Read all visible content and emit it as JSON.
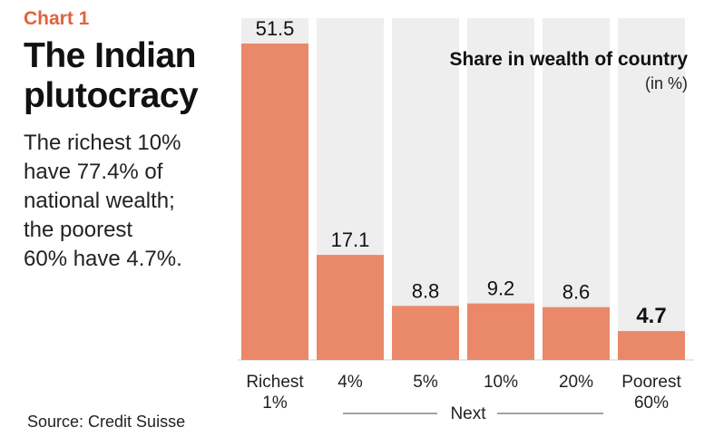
{
  "kicker": "Chart 1",
  "headline_line1": "The Indian",
  "headline_line2": "plutocracy",
  "description": [
    "The richest 10%",
    "have 77.4% of",
    "national wealth;",
    "the poorest",
    "60% have 4.7%."
  ],
  "source": "Source: Credit Suisse",
  "colors": {
    "bar": "#e9896a",
    "kicker": "#e0633d",
    "panel": "#eeeeee"
  },
  "chart_data": {
    "type": "bar",
    "title": "Share in wealth of country",
    "subtitle": "(in %)",
    "categories": [
      [
        "Richest",
        "1%"
      ],
      [
        "4%"
      ],
      [
        "5%"
      ],
      [
        "10%"
      ],
      [
        "20%"
      ],
      [
        "Poorest",
        "60%"
      ]
    ],
    "values": [
      51.5,
      17.1,
      8.8,
      9.2,
      8.6,
      4.7
    ],
    "value_labels": [
      "51.5",
      "17.1",
      "8.8",
      "9.2",
      "8.6",
      "4.7"
    ],
    "highlight_index": 5,
    "group_label": "Next",
    "ylim": [
      0,
      51.5
    ],
    "grid": false
  }
}
